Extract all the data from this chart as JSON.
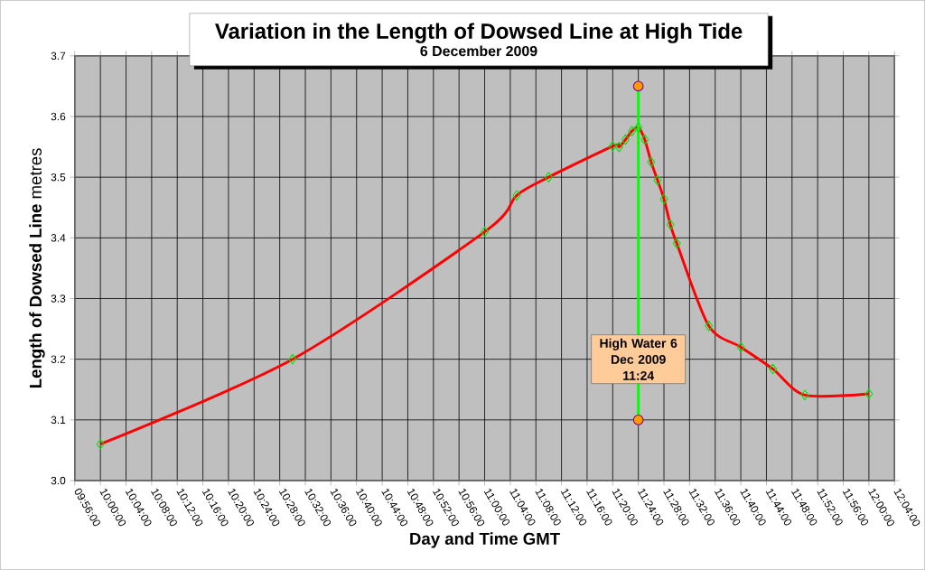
{
  "chart_data": {
    "type": "line",
    "title": "Variation in the Length of Dowsed Line at High Tide",
    "subtitle": "6 December 2009",
    "xlabel": "Day and Time  GMT",
    "ylabel": "**Length of Dowsed Line** metres",
    "xlim": [
      9.933333,
      12.066667
    ],
    "xticks": [
      {
        "value": 9.933333,
        "label": "09:56:00"
      },
      {
        "value": 10.0,
        "label": "10:00:00"
      },
      {
        "value": 10.066667,
        "label": "10:04:00"
      },
      {
        "value": 10.133333,
        "label": "10:08:00"
      },
      {
        "value": 10.2,
        "label": "10:12:00"
      },
      {
        "value": 10.266667,
        "label": "10:16:00"
      },
      {
        "value": 10.333333,
        "label": "10:20:00"
      },
      {
        "value": 10.4,
        "label": "10:24:00"
      },
      {
        "value": 10.466667,
        "label": "10:28:00"
      },
      {
        "value": 10.533333,
        "label": "10:32:00"
      },
      {
        "value": 10.6,
        "label": "10:36:00"
      },
      {
        "value": 10.666667,
        "label": "10:40:00"
      },
      {
        "value": 10.733333,
        "label": "10:44:00"
      },
      {
        "value": 10.8,
        "label": "10:48:00"
      },
      {
        "value": 10.866667,
        "label": "10:52:00"
      },
      {
        "value": 10.933333,
        "label": "10:56:00"
      },
      {
        "value": 11.0,
        "label": "11:00:00"
      },
      {
        "value": 11.066667,
        "label": "11:04:00"
      },
      {
        "value": 11.133333,
        "label": "11:08:00"
      },
      {
        "value": 11.2,
        "label": "11:12:00"
      },
      {
        "value": 11.266667,
        "label": "11:16:00"
      },
      {
        "value": 11.333333,
        "label": "11:20:00"
      },
      {
        "value": 11.4,
        "label": "11:24:00"
      },
      {
        "value": 11.466667,
        "label": "11:28:00"
      },
      {
        "value": 11.533333,
        "label": "11:32:00"
      },
      {
        "value": 11.6,
        "label": "11:36:00"
      },
      {
        "value": 11.666667,
        "label": "11:40:00"
      },
      {
        "value": 11.733333,
        "label": "11:44:00"
      },
      {
        "value": 11.8,
        "label": "11:48:00"
      },
      {
        "value": 11.866667,
        "label": "11:52:00"
      },
      {
        "value": 11.933333,
        "label": "11:56:00"
      },
      {
        "value": 12.0,
        "label": "12:00:00"
      },
      {
        "value": 12.066667,
        "label": "12:04:00"
      }
    ],
    "ylim": [
      3.0,
      3.7
    ],
    "yticks": [
      {
        "value": 3.0,
        "label": "3.0"
      },
      {
        "value": 3.1,
        "label": "3.1"
      },
      {
        "value": 3.2,
        "label": "3.2"
      },
      {
        "value": 3.3,
        "label": "3.3"
      },
      {
        "value": 3.4,
        "label": "3.4"
      },
      {
        "value": 3.5,
        "label": "3.5"
      },
      {
        "value": 3.6,
        "label": "3.6"
      },
      {
        "value": 3.7,
        "label": "3.7"
      }
    ],
    "grid": true,
    "series": [
      {
        "color": "#ff0000",
        "marker": "diamond",
        "x": [
          10.0,
          10.5,
          11.0,
          11.083333,
          11.166667,
          11.333333,
          11.35,
          11.366667,
          11.383333,
          11.4,
          11.416667,
          11.433333,
          11.45,
          11.466667,
          11.483333,
          11.5,
          11.583333,
          11.666667,
          11.75,
          11.833333,
          12.0
        ],
        "values": [
          3.06,
          3.2,
          3.41,
          3.47,
          3.5,
          3.551,
          3.55,
          3.562,
          3.576,
          3.582,
          3.562,
          3.525,
          3.495,
          3.464,
          3.422,
          3.391,
          3.255,
          3.22,
          3.184,
          3.141,
          3.143
        ]
      },
      {
        "color": "#00ff00",
        "marker": "circle",
        "x": [
          11.4,
          11.4
        ],
        "values": [
          3.65,
          3.1
        ]
      }
    ],
    "annotations": [
      {
        "text": "High Water 6 Dec 2009 11:24",
        "x": 11.4,
        "y": 3.2
      }
    ]
  }
}
